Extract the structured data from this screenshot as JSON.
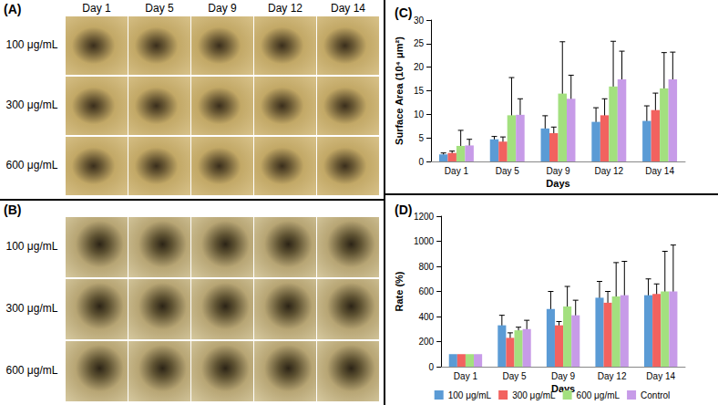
{
  "image_panels": [
    {
      "label": "(A)",
      "columns": [
        "Day 1",
        "Day 5",
        "Day 9",
        "Day 12",
        "Day 14"
      ],
      "rows": [
        "100 μg/mL",
        "300 μg/mL",
        "600 μg/mL"
      ]
    },
    {
      "label": "(B)",
      "columns": [],
      "rows": [
        "100 μg/mL",
        "300 μg/mL",
        "600 μg/mL"
      ]
    }
  ],
  "chart_data": [
    {
      "type": "bar",
      "title": "(C)",
      "x_label": "Days",
      "y_label": "Surface Area (10⁴ μm²)",
      "categories": [
        "Day 1",
        "Day 5",
        "Day 9",
        "Day 12",
        "Day 14"
      ],
      "series": [
        {
          "color": "#5b9bd5",
          "values": [
            1.5,
            4.7,
            7.0,
            8.4,
            8.6
          ],
          "errors": [
            0.3,
            0.6,
            2.7,
            3.0,
            3.2
          ]
        },
        {
          "color": "#f2625f",
          "values": [
            1.8,
            4.2,
            6.0,
            9.8,
            10.9
          ],
          "errors": [
            0.4,
            1.0,
            1.3,
            3.5,
            3.6
          ]
        },
        {
          "color": "#a3e07f",
          "values": [
            3.3,
            9.8,
            14.4,
            15.9,
            15.5
          ],
          "errors": [
            3.3,
            8.0,
            11.0,
            9.6,
            7.6
          ]
        },
        {
          "color": "#c79be8",
          "values": [
            3.4,
            9.9,
            13.3,
            17.4,
            17.4
          ],
          "errors": [
            1.3,
            3.4,
            5.0,
            6.0,
            5.8
          ]
        }
      ],
      "ylim": [
        0,
        30
      ],
      "yticks": [
        0,
        5,
        10,
        15,
        20,
        25,
        30
      ],
      "grid": false
    },
    {
      "type": "bar",
      "title": "(D)",
      "x_label": "Days",
      "y_label": "Rate (%)",
      "categories": [
        "Day 1",
        "Day 5",
        "Day 9",
        "Day 12",
        "Day 14"
      ],
      "series": [
        {
          "name": "100 μg/mL",
          "color": "#5b9bd5",
          "values": [
            100,
            330,
            460,
            550,
            570
          ],
          "errors": [
            null,
            80,
            140,
            130,
            130
          ]
        },
        {
          "name": "300 μg/mL",
          "color": "#f2625f",
          "values": [
            100,
            230,
            330,
            510,
            580
          ],
          "errors": [
            null,
            40,
            30,
            90,
            80
          ]
        },
        {
          "name": "600 μg/mL",
          "color": "#a3e07f",
          "values": [
            100,
            290,
            480,
            560,
            600
          ],
          "errors": [
            null,
            25,
            160,
            270,
            320
          ]
        },
        {
          "name": "Control",
          "color": "#c79be8",
          "values": [
            100,
            300,
            410,
            570,
            600
          ],
          "errors": [
            null,
            70,
            120,
            270,
            370
          ]
        }
      ],
      "ylim": [
        0,
        1200
      ],
      "yticks": [
        0,
        200,
        400,
        600,
        800,
        1000,
        1200
      ],
      "grid": false,
      "legend": "bottom"
    }
  ]
}
